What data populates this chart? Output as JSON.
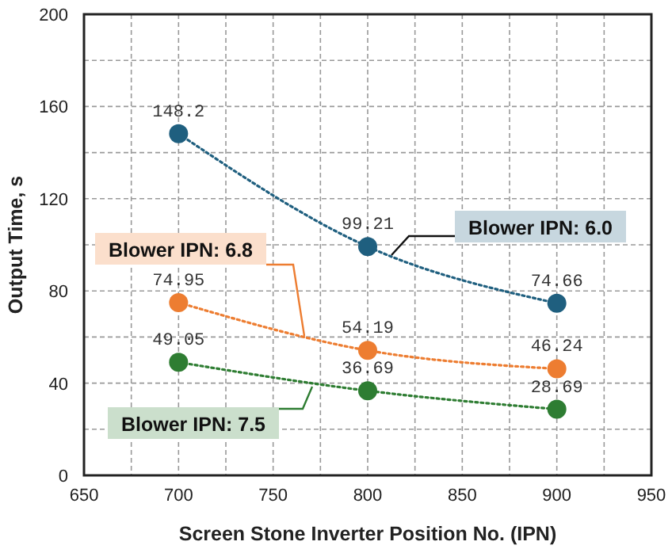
{
  "chart_data": {
    "type": "line",
    "xlabel": "Screen Stone Inverter Position No. (IPN)",
    "ylabel": "Output Time, s",
    "x": [
      700,
      800,
      900
    ],
    "series": [
      {
        "name": "Blower IPN: 6.0",
        "color": "#1f5f7f",
        "values": [
          148.2,
          99.21,
          74.66
        ]
      },
      {
        "name": "Blower IPN: 6.8",
        "color": "#ed7d31",
        "values": [
          74.95,
          54.19,
          46.24
        ]
      },
      {
        "name": "Blower IPN: 7.5",
        "color": "#2e7d32",
        "values": [
          49.05,
          36.69,
          28.69
        ]
      }
    ],
    "xlim": [
      650,
      950
    ],
    "xticks": [
      650,
      {
        "value": 675,
        "label": null
      },
      700,
      {
        "value": 725,
        "label": null
      },
      750,
      {
        "value": 775,
        "label": null
      },
      800,
      {
        "value": 825,
        "label": null
      },
      850,
      {
        "value": 875,
        "label": null
      },
      900,
      {
        "value": 925,
        "label": null
      },
      950
    ],
    "ylim": [
      0,
      200
    ],
    "yticks": [
      0,
      {
        "value": 20,
        "label": null
      },
      40,
      {
        "value": 60,
        "label": null
      },
      80,
      {
        "value": 100,
        "label": null
      },
      120,
      {
        "value": 140,
        "label": null
      },
      160,
      {
        "value": 180,
        "label": null
      },
      200
    ],
    "grid": true,
    "legend": false,
    "data_labels": true,
    "marker": "circle",
    "line_style": "dotted"
  }
}
